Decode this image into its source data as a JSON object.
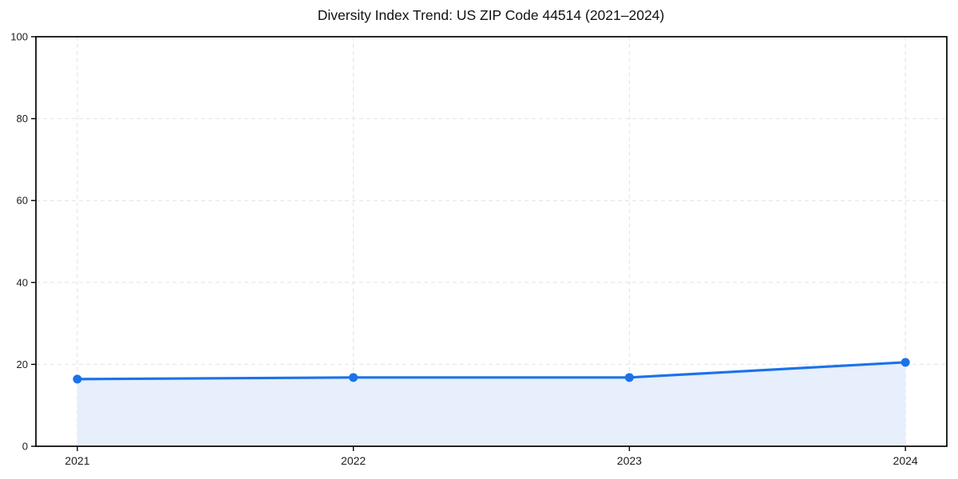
{
  "page": {
    "background": "#ffffff"
  },
  "chart_data": {
    "type": "line",
    "title": "Diversity Index Trend: US ZIP Code 44514 (2021–2024)",
    "categories": [
      "2021",
      "2022",
      "2023",
      "2024"
    ],
    "x": [
      2021,
      2022,
      2023,
      2024
    ],
    "series": [
      {
        "name": "Diversity Index",
        "values": [
          16.4,
          16.8,
          16.8,
          20.5
        ]
      }
    ],
    "xlabel": "",
    "ylabel": "",
    "xlim": [
      2020.85,
      2024.15
    ],
    "ylim": [
      0,
      100
    ],
    "xticks": [
      2021,
      2022,
      2023,
      2024
    ],
    "yticks": [
      0,
      20,
      40,
      60,
      80,
      100
    ],
    "grid": true,
    "grid_style": "dashed",
    "legend": false,
    "area_fill": true,
    "marker": "circle",
    "colors": {
      "line": "#1a73e8",
      "marker": "#1a73e8",
      "area_fill": "#e7eefc",
      "grid": "#e2e2e2",
      "axis": "#000000",
      "tick": "#000000",
      "tick_label": "#1c1c1c",
      "title": "#111111",
      "background": "#ffffff"
    }
  }
}
